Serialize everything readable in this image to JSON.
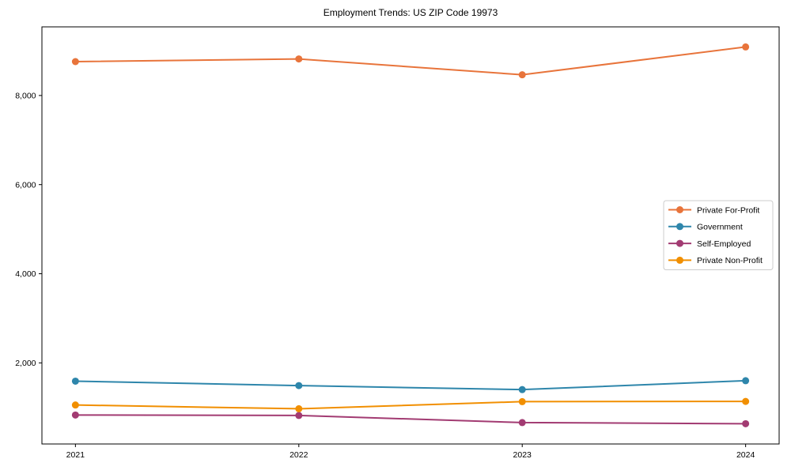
{
  "chart_data": {
    "type": "line",
    "title": "Employment Trends: US ZIP Code 19973",
    "xlabel": "",
    "ylabel": "",
    "x": [
      2021,
      2022,
      2023,
      2024
    ],
    "xtick_labels": [
      "2021",
      "2022",
      "2023",
      "2024"
    ],
    "series": [
      {
        "name": "Private For-Profit",
        "color": "#E8743B",
        "values": [
          8760,
          8820,
          8465,
          9090
        ]
      },
      {
        "name": "Government",
        "color": "#2E86AB",
        "values": [
          1590,
          1490,
          1400,
          1600
        ]
      },
      {
        "name": "Self-Employed",
        "color": "#A23B72",
        "values": [
          830,
          820,
          660,
          635
        ]
      },
      {
        "name": "Private Non-Profit",
        "color": "#F18F01",
        "values": [
          1055,
          970,
          1130,
          1135
        ]
      }
    ],
    "yticks": [
      2000,
      4000,
      6000,
      8000
    ],
    "ytick_labels": [
      "2,000",
      "4,000",
      "6,000",
      "8,000"
    ],
    "ylim": [
      180,
      9540
    ],
    "xlim": [
      2020.85,
      2024.15
    ],
    "grid": false,
    "legend_position": "center-right",
    "axis_color": "#000000",
    "legend_border_color": "#cccccc",
    "background_color": "#ffffff",
    "marker": "circle"
  }
}
